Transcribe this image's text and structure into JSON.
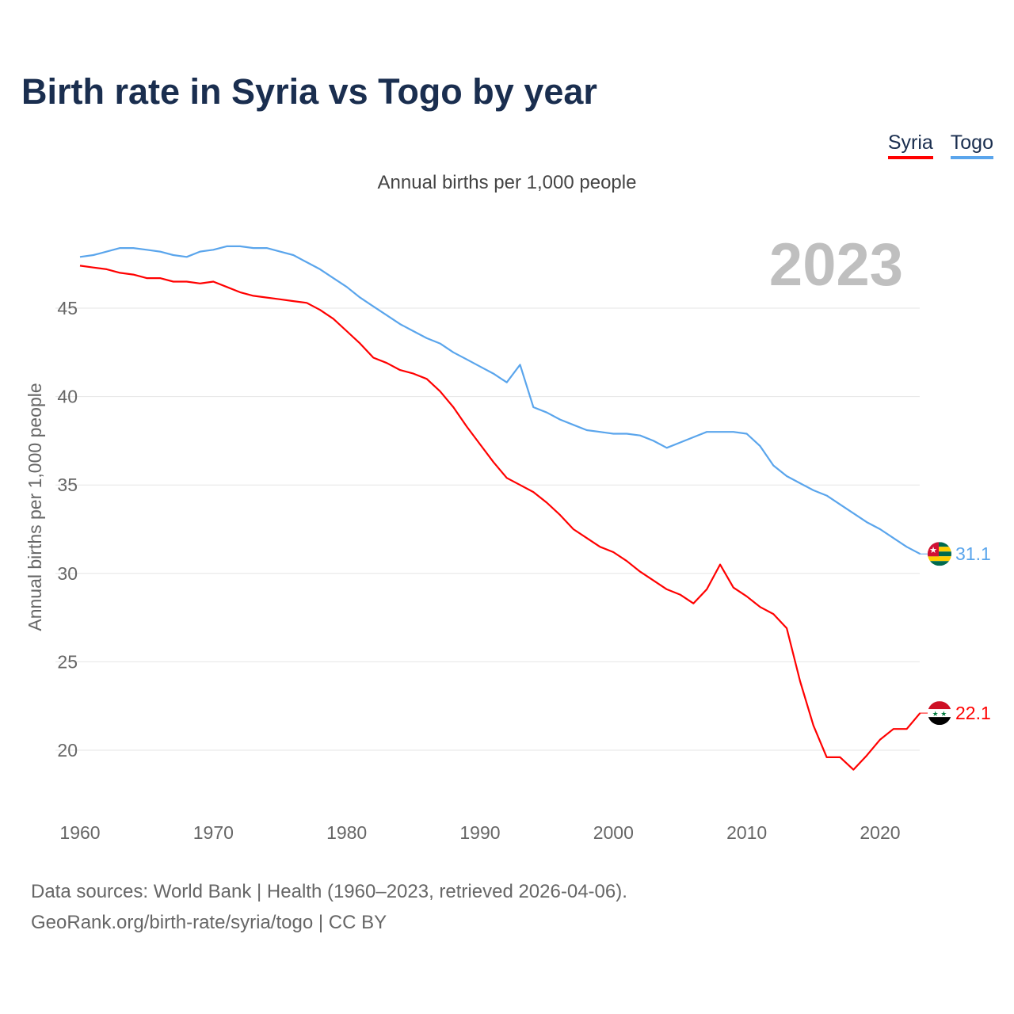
{
  "title": "Birth rate in Syria vs Togo by year",
  "subtitle": "Annual births per 1,000 people",
  "legend": [
    {
      "label": "Syria",
      "color": "#ff0000"
    },
    {
      "label": "Togo",
      "color": "#5aa5ec"
    }
  ],
  "footer": {
    "line1": "Data sources: World Bank | Health (1960–2023, retrieved 2026-04-06).",
    "line2": "GeoRank.org/birth-rate/syria/togo | CC BY"
  },
  "chart_data": {
    "type": "line",
    "title": "Birth rate in Syria vs Togo by year",
    "ylabel": "Annual births per 1,000 people",
    "xlabel": "",
    "year_label": "2023",
    "xlim": [
      1960,
      2023
    ],
    "ylim": [
      17,
      49.5
    ],
    "xticks": [
      1960,
      1970,
      1980,
      1990,
      2000,
      2010,
      2020
    ],
    "yticks": [
      20,
      25,
      30,
      35,
      40,
      45
    ],
    "grid": true,
    "legend_position": "top-right",
    "x_start": 1960,
    "series": [
      {
        "name": "Syria",
        "color": "#ff0000",
        "end_label": "22.1",
        "values": [
          47.4,
          47.3,
          47.2,
          47.0,
          46.9,
          46.7,
          46.7,
          46.5,
          46.5,
          46.4,
          46.5,
          46.2,
          45.9,
          45.7,
          45.6,
          45.5,
          45.4,
          45.3,
          44.9,
          44.4,
          43.7,
          43.0,
          42.2,
          41.9,
          41.5,
          41.3,
          41.0,
          40.3,
          39.4,
          38.3,
          37.3,
          36.3,
          35.4,
          35.0,
          34.6,
          34.0,
          33.3,
          32.5,
          32.0,
          31.5,
          31.2,
          30.7,
          30.1,
          29.6,
          29.1,
          28.8,
          28.3,
          29.1,
          30.5,
          29.2,
          28.7,
          28.1,
          27.7,
          26.9,
          23.9,
          21.4,
          19.6,
          19.6,
          18.9,
          19.7,
          20.6,
          21.2,
          21.2,
          22.1
        ]
      },
      {
        "name": "Togo",
        "color": "#5aa5ec",
        "end_label": "31.1",
        "values": [
          47.9,
          48.0,
          48.2,
          48.4,
          48.4,
          48.3,
          48.2,
          48.0,
          47.9,
          48.2,
          48.3,
          48.5,
          48.5,
          48.4,
          48.4,
          48.2,
          48.0,
          47.6,
          47.2,
          46.7,
          46.2,
          45.6,
          45.1,
          44.6,
          44.1,
          43.7,
          43.3,
          43.0,
          42.5,
          42.1,
          41.7,
          41.3,
          40.8,
          41.8,
          39.4,
          39.1,
          38.7,
          38.4,
          38.1,
          38.0,
          37.9,
          37.9,
          37.8,
          37.5,
          37.1,
          37.4,
          37.7,
          38.0,
          38.0,
          38.0,
          37.9,
          37.2,
          36.1,
          35.5,
          35.1,
          34.7,
          34.4,
          33.9,
          33.4,
          32.9,
          32.5,
          32.0,
          31.5,
          31.1
        ]
      }
    ]
  }
}
